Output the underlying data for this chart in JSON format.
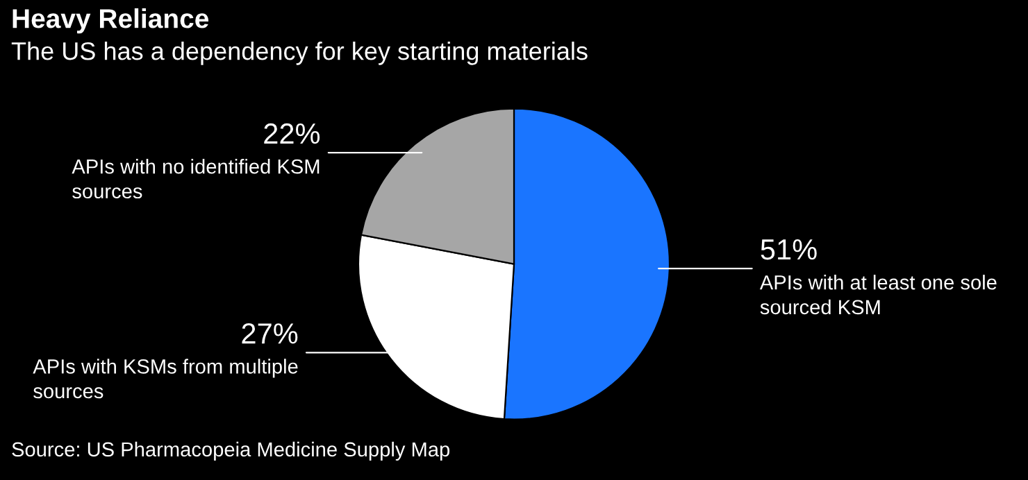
{
  "chart_data": {
    "type": "pie",
    "title": "Heavy Reliance",
    "subtitle": "The US has a dependency for key starting materials",
    "categories": [
      "APIs with at least one sole\nsourced KSM",
      "APIs with KSMs from multiple\nsources",
      "APIs with no identified KSM\nsources"
    ],
    "values": [
      51,
      27,
      22
    ],
    "value_labels": [
      "51%",
      "27%",
      "22%"
    ],
    "colors": [
      "#1a75ff",
      "#ffffff",
      "#a6a6a6"
    ],
    "annotations": [
      "Source: US Pharmacopeia Medicine Supply Map"
    ]
  }
}
